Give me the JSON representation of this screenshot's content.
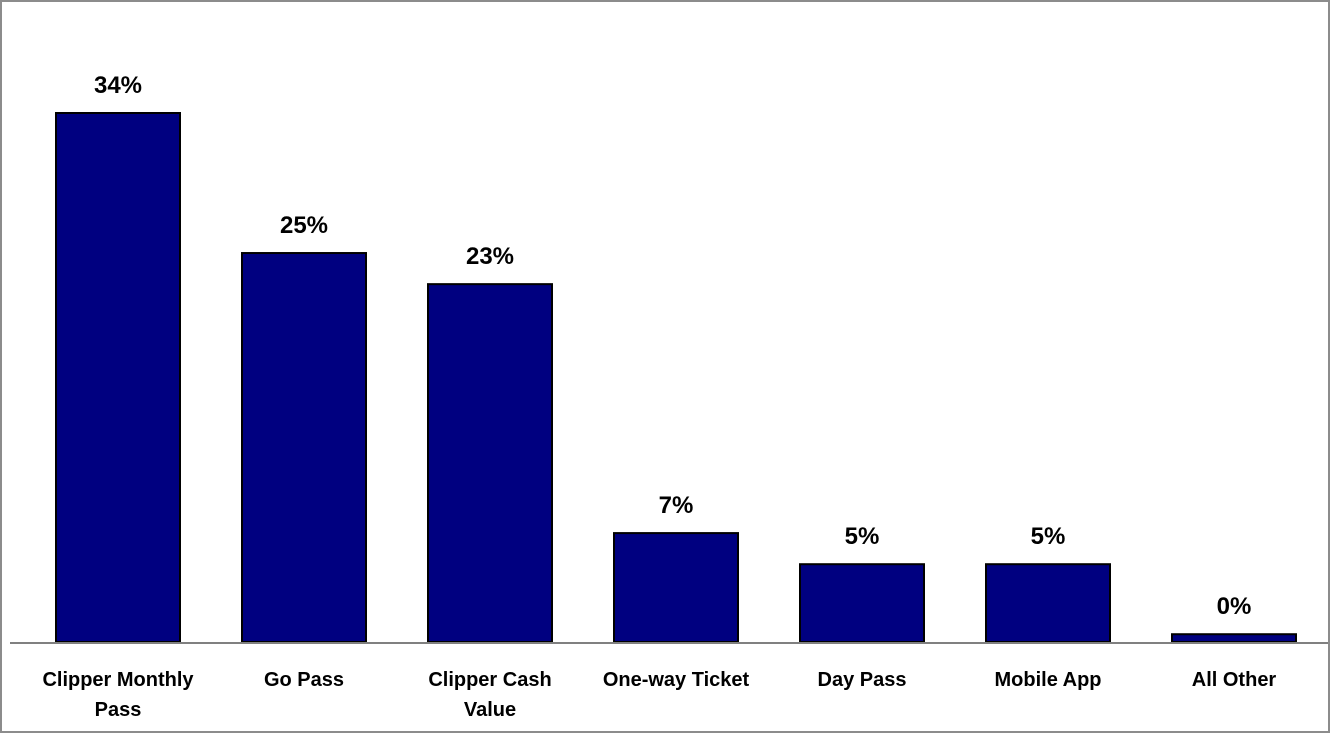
{
  "chart_data": {
    "type": "bar",
    "categories": [
      "Clipper Monthly Pass",
      "Go Pass",
      "Clipper Cash Value",
      "One-way Ticket",
      "Day Pass",
      "Mobile App",
      "All Other"
    ],
    "category_lines": [
      [
        "Clipper Monthly",
        "Pass"
      ],
      [
        "Go Pass"
      ],
      [
        "Clipper Cash",
        "Value"
      ],
      [
        "One-way Ticket"
      ],
      [
        "Day Pass"
      ],
      [
        "Mobile App"
      ],
      [
        "All Other"
      ]
    ],
    "values": [
      34,
      25,
      23,
      7,
      5,
      5,
      0.5
    ],
    "data_labels": [
      "34%",
      "25%",
      "23%",
      "7%",
      "5%",
      "5%",
      "0%"
    ],
    "title": "",
    "xlabel": "",
    "ylabel": "",
    "ylim": [
      0,
      34
    ],
    "grid": false,
    "legend": "none",
    "colors": {
      "bar_fill": "#000080",
      "bar_stroke": "#000000",
      "axis": "#808080",
      "frame": "#8c8c8c"
    }
  }
}
